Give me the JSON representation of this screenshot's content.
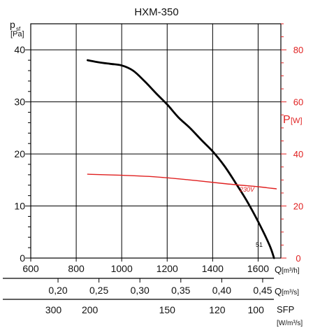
{
  "chart_data": {
    "type": "line",
    "title": "HXM-350",
    "ylabel_left": {
      "main": "p",
      "sub": "sf",
      "unit": "[Pa]"
    },
    "ylabel_right": {
      "main": "P",
      "unit": "[W]"
    },
    "x_axis": {
      "label": "Q",
      "unit": "[m³/h]",
      "range": [
        600,
        1700
      ],
      "ticks": [
        "600",
        "800",
        "1000",
        "1200",
        "1400",
        "1600"
      ]
    },
    "y_left": {
      "range": [
        0,
        45
      ],
      "ticks": [
        "0",
        "10",
        "20",
        "30",
        "40"
      ]
    },
    "y_right": {
      "range": [
        0,
        90
      ],
      "ticks": [
        "0",
        "20",
        "40",
        "60",
        "80"
      ],
      "color": "#e02020"
    },
    "secondary_axes": [
      {
        "label": "Q",
        "unit": "[m³/s]",
        "ticks": [
          {
            "label": "0,20",
            "x": 720
          },
          {
            "label": "0,25",
            "x": 900
          },
          {
            "label": "0,30",
            "x": 1080
          },
          {
            "label": "0,35",
            "x": 1260
          },
          {
            "label": "0,40",
            "x": 1440
          },
          {
            "label": "0,45",
            "x": 1620
          }
        ]
      },
      {
        "label": "SFP",
        "unit": "[W/m³/s]",
        "ticks": [
          {
            "label": "300",
            "x": 700
          },
          {
            "label": "200",
            "x": 860
          },
          {
            "label": "150",
            "x": 1200
          },
          {
            "label": "120",
            "x": 1420
          },
          {
            "label": "100",
            "x": 1590
          }
        ]
      }
    ],
    "series": [
      {
        "name": "51",
        "axis": "left",
        "color": "#000000",
        "points": [
          [
            850,
            38
          ],
          [
            900,
            37.6
          ],
          [
            950,
            37.3
          ],
          [
            1000,
            37
          ],
          [
            1050,
            36
          ],
          [
            1100,
            34
          ],
          [
            1150,
            31.7
          ],
          [
            1200,
            29.5
          ],
          [
            1250,
            27
          ],
          [
            1300,
            25
          ],
          [
            1350,
            22.7
          ],
          [
            1400,
            20.5
          ],
          [
            1450,
            17.8
          ],
          [
            1500,
            14.5
          ],
          [
            1550,
            11
          ],
          [
            1600,
            7
          ],
          [
            1650,
            2.5
          ],
          [
            1670,
            0
          ]
        ]
      },
      {
        "name": "230V",
        "axis": "right",
        "color": "#e02020",
        "points": [
          [
            850,
            32.2
          ],
          [
            1000,
            31.8
          ],
          [
            1150,
            31.2
          ],
          [
            1300,
            30
          ],
          [
            1450,
            28.6
          ],
          [
            1600,
            27.4
          ],
          [
            1680,
            26.6
          ]
        ]
      }
    ]
  }
}
